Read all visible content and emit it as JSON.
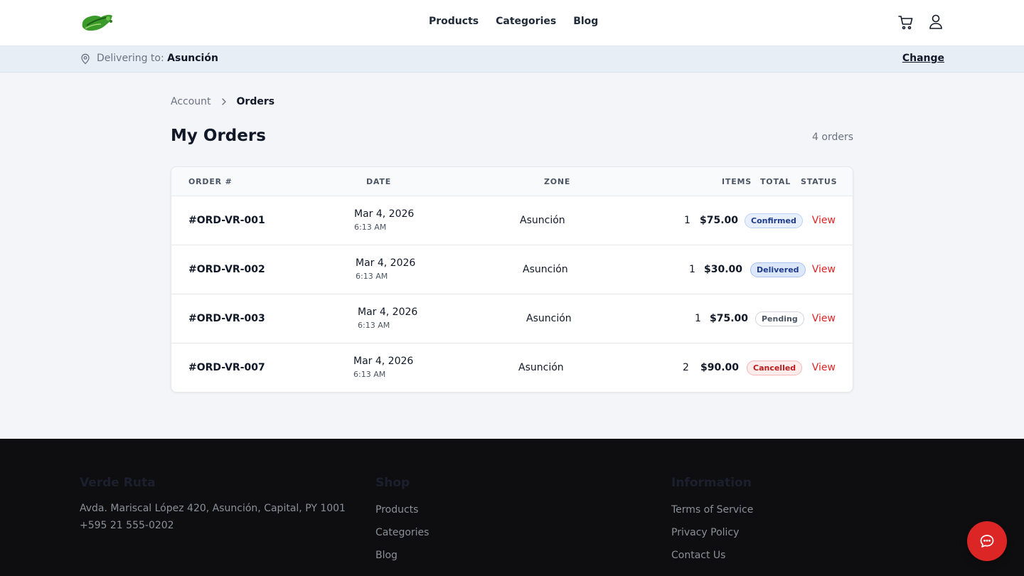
{
  "header": {
    "brand": "Verde Ruta",
    "nav": [
      "Products",
      "Categories",
      "Blog"
    ],
    "icons": [
      "cart-icon",
      "user-icon"
    ]
  },
  "delivery": {
    "prefix": "Delivering to:",
    "location": "Asunción",
    "change_label": "Change"
  },
  "breadcrumb": {
    "parent": "Account",
    "current": "Orders"
  },
  "page": {
    "title": "My Orders",
    "count_label": "4 orders"
  },
  "table": {
    "headers": {
      "order": "ORDER #",
      "date": "DATE",
      "zone": "ZONE",
      "items": "ITEMS",
      "total": "TOTAL",
      "status": "STATUS"
    },
    "rows": [
      {
        "order": "#ORD-VR-001",
        "date": "Mar 4, 2026",
        "time": "6:13 AM",
        "zone": "Asunción",
        "items": "1",
        "total": "$75.00",
        "status": "Confirmed",
        "action": "View"
      },
      {
        "order": "#ORD-VR-002",
        "date": "Mar 4, 2026",
        "time": "6:13 AM",
        "zone": "Asunción",
        "items": "1",
        "total": "$30.00",
        "status": "Delivered",
        "action": "View"
      },
      {
        "order": "#ORD-VR-003",
        "date": "Mar 4, 2026",
        "time": "6:13 AM",
        "zone": "Asunción",
        "items": "1",
        "total": "$75.00",
        "status": "Pending",
        "action": "View"
      },
      {
        "order": "#ORD-VR-007",
        "date": "Mar 4, 2026",
        "time": "6:13 AM",
        "zone": "Asunción",
        "items": "2",
        "total": "$90.00",
        "status": "Cancelled",
        "action": "View"
      }
    ]
  },
  "footer": {
    "brand_title": "Verde Ruta",
    "address": "Avda. Mariscal López 420, Asunción, Capital, PY 1001",
    "phone": "+595 21 555-0202",
    "shop_title": "Shop",
    "shop_links": [
      "Products",
      "Categories",
      "Blog"
    ],
    "info_title": "Information",
    "info_links": [
      "Terms of Service",
      "Privacy Policy",
      "Contact Us"
    ]
  },
  "colors": {
    "accent": "#dc2626",
    "logo_green": "#3a9a2a"
  }
}
